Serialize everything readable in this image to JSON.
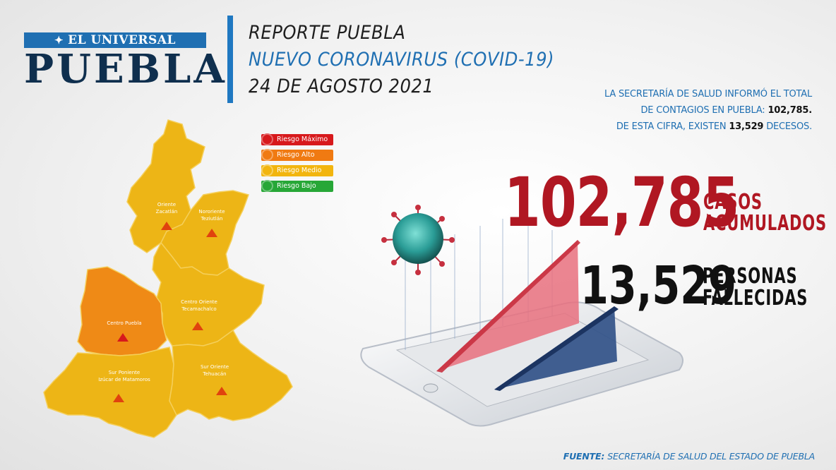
{
  "logo": {
    "top": "EL UNIVERSAL",
    "city": "PUEBLA",
    "eagle_icon": "eagle-emblem"
  },
  "header": {
    "line1": "REPORTE PUEBLA",
    "line2": "NUEVO CORONAVIRUS (COVID-19)",
    "line3": "24 DE AGOSTO 2021"
  },
  "info": {
    "line1": "LA SECRETARÍA DE SALUD  INFORMÓ EL TOTAL",
    "line2_prefix": "DE CONTAGIOS EN PUEBLA: ",
    "line2_value": "102,785.",
    "line3_prefix": "DE ESTA CIFRA, EXISTEN ",
    "line3_value": "13,529",
    "line3_suffix": " DECESOS."
  },
  "legend": [
    {
      "label": "Riesgo Máximo",
      "color": "#d7191c"
    },
    {
      "label": "Riesgo Alto",
      "color": "#f07a12"
    },
    {
      "label": "Riesgo Medio",
      "color": "#f2b50f"
    },
    {
      "label": "Riesgo Bajo",
      "color": "#27a737"
    }
  ],
  "map": {
    "regions": [
      {
        "line1": "Oriente",
        "line2": "Zacatlán",
        "risk": "Riesgo Medio"
      },
      {
        "line1": "Nororiente",
        "line2": "Teziutlán",
        "risk": "Riesgo Medio"
      },
      {
        "line1": "Centro Oriente",
        "line2": "Tecamachalco",
        "risk": "Riesgo Medio"
      },
      {
        "line1": "Centro  Puebla",
        "line2": "",
        "risk": "Riesgo Alto"
      },
      {
        "line1": "Sur Poniente",
        "line2": "Izúcar de Matamoros",
        "risk": "Riesgo Medio"
      },
      {
        "line1": "Sur Oriente",
        "line2": "Tehuacán",
        "risk": "Riesgo Medio"
      }
    ],
    "colors": {
      "medio": "#edb516",
      "alto": "#ef8a16",
      "triangle": "#e0420e"
    }
  },
  "stats": {
    "cases_value": "102,785",
    "cases_label1": "CASOS",
    "cases_label2": "ACUMULADOS",
    "deaths_value": "13,529",
    "deaths_label1": "PERSONAS",
    "deaths_label2": "FALLECIDAS",
    "cases_color": "#b01722",
    "deaths_color": "#111111"
  },
  "source": {
    "prefix": "FUENTE: ",
    "text": "SECRETARÍA DE SALUD DEL ESTADO DE PUEBLA"
  }
}
